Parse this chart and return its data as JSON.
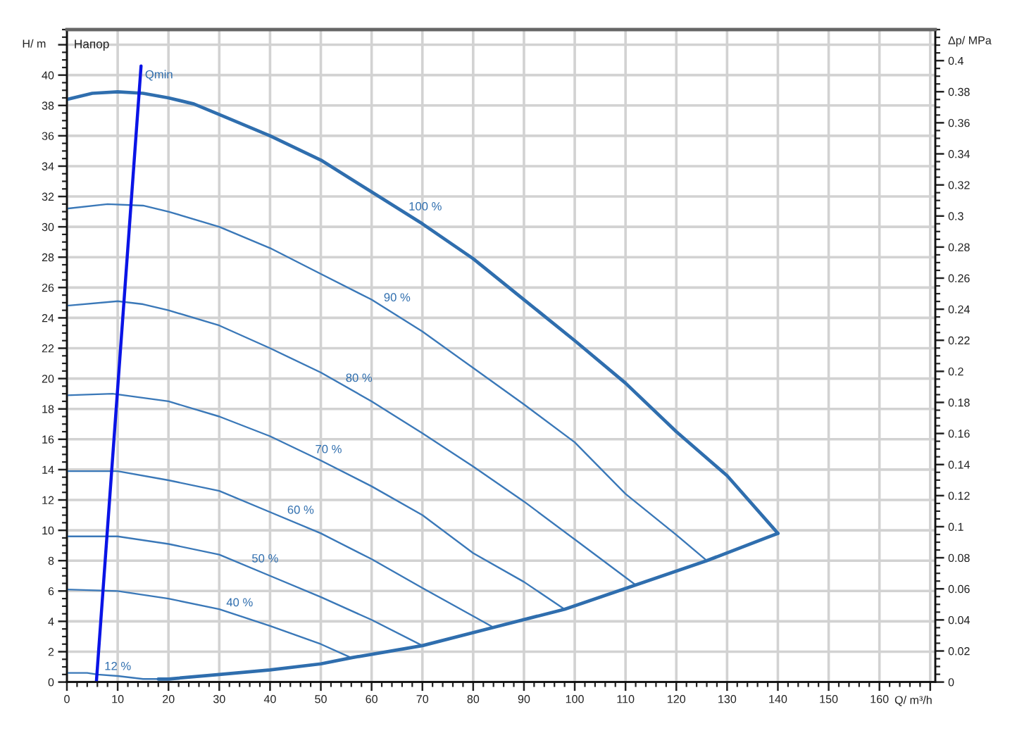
{
  "chart_data": {
    "type": "line",
    "title": "Напор",
    "xlabel": "Q/ m³/h",
    "ylabel": "H/ m",
    "y2label": "Δp/ MPa",
    "xlim": [
      0,
      171
    ],
    "xticks": [
      0,
      10,
      20,
      30,
      40,
      50,
      60,
      70,
      80,
      90,
      100,
      110,
      120,
      130,
      140,
      150,
      160,
      {
        "value": 170,
        "label": null
      }
    ],
    "ylim": [
      0,
      43
    ],
    "yticks": [
      0,
      2,
      4,
      6,
      8,
      10,
      12,
      14,
      16,
      18,
      20,
      22,
      24,
      26,
      28,
      30,
      32,
      34,
      36,
      38,
      40,
      {
        "value": 42,
        "label": null
      }
    ],
    "y2lim": [
      0,
      0.42
    ],
    "y2ticks": [
      0,
      0.02,
      0.04,
      0.06,
      0.08,
      0.1,
      0.12,
      0.14,
      0.16,
      0.18,
      0.2,
      0.22,
      0.24,
      0.26,
      0.28,
      0.3,
      0.32,
      0.34,
      0.36,
      0.38,
      0.4
    ],
    "grid": true,
    "legend": false,
    "marker": "none",
    "line_style": "solid",
    "series": [
      {
        "color": "#2f6eae",
        "x": [
          0,
          5,
          10,
          15,
          20,
          25,
          30,
          40,
          50,
          60,
          70,
          80,
          90,
          100,
          110,
          120,
          130,
          140
        ],
        "values": [
          38.4,
          38.8,
          38.9,
          38.8,
          38.5,
          38.1,
          37.4,
          36.0,
          34.4,
          32.3,
          30.2,
          27.9,
          25.2,
          22.5,
          19.7,
          16.5,
          13.6,
          9.8
        ]
      },
      {
        "color": "#3a78b8",
        "x": [
          0,
          8,
          15,
          20,
          30,
          40,
          50,
          60,
          70,
          80,
          90,
          100,
          110,
          120,
          126
        ],
        "values": [
          31.2,
          31.5,
          31.4,
          31.0,
          30.0,
          28.6,
          26.9,
          25.2,
          23.1,
          20.7,
          18.3,
          15.8,
          12.4,
          9.7,
          8.0
        ]
      },
      {
        "color": "#3a78b8",
        "x": [
          0,
          10,
          15,
          20,
          30,
          40,
          50,
          60,
          70,
          80,
          90,
          100,
          112
        ],
        "values": [
          24.8,
          25.1,
          24.9,
          24.5,
          23.5,
          22.0,
          20.4,
          18.5,
          16.4,
          14.2,
          11.9,
          9.4,
          6.4
        ]
      },
      {
        "color": "#3a78b8",
        "x": [
          0,
          9,
          20,
          30,
          40,
          50,
          60,
          70,
          80,
          90,
          98
        ],
        "values": [
          18.9,
          19.0,
          18.5,
          17.5,
          16.2,
          14.6,
          12.9,
          11.0,
          8.5,
          6.6,
          4.8
        ]
      },
      {
        "color": "#3a78b8",
        "x": [
          0,
          10,
          20,
          30,
          40,
          50,
          60,
          70,
          84
        ],
        "values": [
          13.9,
          13.9,
          13.3,
          12.6,
          11.2,
          9.8,
          8.1,
          6.2,
          3.6
        ]
      },
      {
        "color": "#3a78b8",
        "x": [
          0,
          10,
          20,
          30,
          40,
          50,
          60,
          70
        ],
        "values": [
          9.6,
          9.6,
          9.1,
          8.4,
          7.0,
          5.6,
          4.1,
          2.4
        ]
      },
      {
        "color": "#3a78b8",
        "x": [
          0,
          10,
          20,
          30,
          40,
          50,
          56
        ],
        "values": [
          6.1,
          6.0,
          5.5,
          4.8,
          3.7,
          2.5,
          1.6
        ]
      },
      {
        "color": "#3a78b8",
        "x": [
          0,
          4,
          6,
          10,
          15,
          18
        ],
        "values": [
          0.6,
          0.6,
          0.5,
          0.4,
          0.2,
          0.2
        ]
      },
      {
        "color": "#2f6eae",
        "x": [
          18,
          20,
          30,
          40,
          50,
          56,
          70,
          84,
          98,
          112,
          126,
          140
        ],
        "values": [
          0.2,
          0.2,
          0.5,
          0.8,
          1.2,
          1.6,
          2.4,
          3.6,
          4.8,
          6.4,
          8.0,
          9.8
        ]
      },
      {
        "name": "Qmin",
        "color": "#0a14e6",
        "x": [
          5.8,
          14.6
        ],
        "values": [
          0,
          40.6
        ]
      }
    ],
    "annotations": [
      {
        "text": "100 %",
        "x": 66.9,
        "y": 30.8
      },
      {
        "text": "90 %",
        "x": 62,
        "y": 24.8
      },
      {
        "text": "80 %",
        "x": 54.5,
        "y": 19.5
      },
      {
        "text": "70 %",
        "x": 48.5,
        "y": 14.8
      },
      {
        "text": "60 %",
        "x": 43,
        "y": 10.8
      },
      {
        "text": "50 %",
        "x": 36,
        "y": 7.6
      },
      {
        "text": "40 %",
        "x": 31,
        "y": 4.7
      },
      {
        "text": "12 %",
        "x": 7,
        "y": 0.5
      }
    ]
  }
}
